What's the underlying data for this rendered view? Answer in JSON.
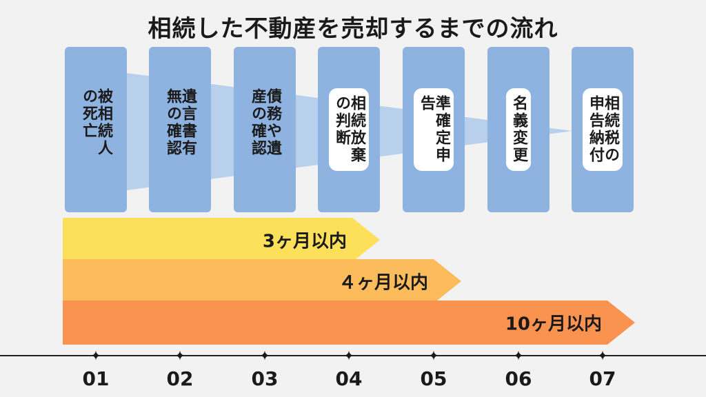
{
  "title": "相続した不動産を売却するまでの流れ",
  "steps": [
    {
      "number": "01",
      "label": "被相続人の死亡"
    },
    {
      "number": "02",
      "label": "遺言書有無の確認"
    },
    {
      "number": "03",
      "label": "債務や遺産の確認"
    },
    {
      "number": "04",
      "label": "相続放棄の判断"
    },
    {
      "number": "05",
      "label": "準確定申告"
    },
    {
      "number": "06",
      "label": "名義変更"
    },
    {
      "number": "07",
      "label": "相続税の申告納付"
    }
  ],
  "deadlines": [
    {
      "label": "3ヶ月以内"
    },
    {
      "label": "４ヶ月以内"
    },
    {
      "label": "10ヶ月以内"
    }
  ],
  "colors": {
    "step_box": "#8fb3e0",
    "funnel": "#b9d0ec",
    "deadline_3": "#fde05a",
    "deadline_4": "#fcbc5b",
    "deadline_10": "#fb9350",
    "background": "#f2f2f2"
  }
}
